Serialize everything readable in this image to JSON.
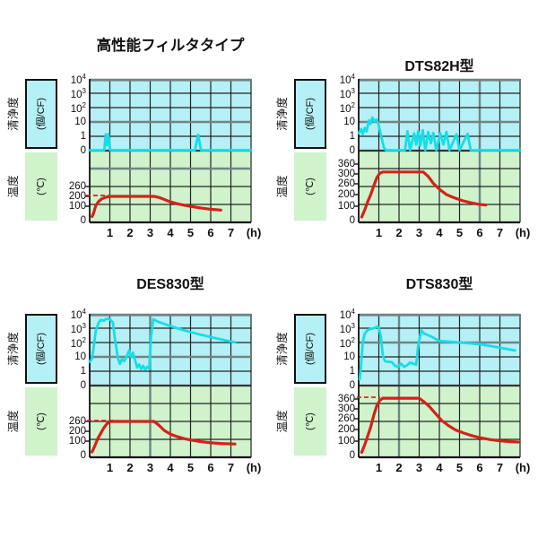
{
  "figure": {
    "background": "#ffffff"
  },
  "colors": {
    "cleanliness_bg": "#b5f0f6",
    "temperature_bg": "#d0f3cc",
    "cleanliness_line": "#17dde8",
    "temperature_line": "#d6201a",
    "grid": "#222222",
    "gray_line": "#708484",
    "axis": "#111111"
  },
  "chart_data": [
    {
      "type": "line",
      "title": "高性能フィルタタイプ",
      "x_axis": {
        "unit": "(h)",
        "ticks": [
          "1",
          "2",
          "3",
          "4",
          "5",
          "6",
          "7"
        ],
        "range_hours": [
          0,
          8
        ]
      },
      "y_axis_cleanliness": {
        "label": "清浄度",
        "unit": "(個/CF)",
        "scale": "log",
        "ticks": [
          {
            "base": "10",
            "exp": "4"
          },
          {
            "base": "10",
            "exp": "3"
          },
          {
            "base": "10",
            "exp": "2"
          },
          {
            "base": "10",
            "exp": ""
          },
          {
            "base": "1",
            "exp": ""
          },
          {
            "base": "0",
            "exp": ""
          }
        ]
      },
      "y_axis_temperature": {
        "label": "温度",
        "unit": "(℃)",
        "tick_values": [
          0,
          100,
          200,
          260
        ],
        "tick_py": [
          158,
          142,
          131,
          120
        ]
      },
      "series": [
        {
          "name": "cleanliness",
          "color": "#17dde8",
          "points": [
            [
              0,
              0
            ],
            [
              0.72,
              0
            ],
            [
              0.8,
              1.35
            ],
            [
              0.86,
              0.35
            ],
            [
              0.93,
              1.45
            ],
            [
              1.02,
              0
            ],
            [
              5.22,
              0
            ],
            [
              5.38,
              1.3
            ],
            [
              5.52,
              0
            ],
            [
              8,
              0
            ]
          ]
        },
        {
          "name": "temperature",
          "color": "#d6201a",
          "points": [
            [
              0.12,
              28
            ],
            [
              0.2,
              55
            ],
            [
              0.3,
              105
            ],
            [
              0.45,
              150
            ],
            [
              0.6,
              175
            ],
            [
              0.8,
              192
            ],
            [
              1.0,
              200
            ],
            [
              3.2,
              200
            ],
            [
              3.45,
              188
            ],
            [
              3.7,
              168
            ],
            [
              4.0,
              145
            ],
            [
              4.35,
              125
            ],
            [
              4.7,
              110
            ],
            [
              5.1,
              97
            ],
            [
              5.5,
              88
            ],
            [
              6.0,
              79
            ],
            [
              6.5,
              73
            ]
          ]
        }
      ],
      "dashed_guide": {
        "value": 200,
        "t_start": -0.18,
        "t_end": 0.93
      }
    },
    {
      "type": "line",
      "title": "DTS82H型",
      "x_axis": {
        "unit": "(h)",
        "ticks": [
          "1",
          "2",
          "3",
          "4",
          "5",
          "6",
          "7"
        ],
        "range_hours": [
          0,
          8
        ]
      },
      "y_axis_cleanliness": {
        "label": "清浄度",
        "unit": "(個/CF)",
        "scale": "log",
        "ticks": [
          {
            "base": "10",
            "exp": "4"
          },
          {
            "base": "10",
            "exp": "3"
          },
          {
            "base": "10",
            "exp": "2"
          },
          {
            "base": "10",
            "exp": ""
          },
          {
            "base": "1",
            "exp": ""
          },
          {
            "base": "0",
            "exp": ""
          }
        ]
      },
      "y_axis_temperature": {
        "label": "温度",
        "unit": "(℃)",
        "tick_values": [
          0,
          100,
          200,
          260,
          300,
          360
        ],
        "tick_py": [
          158,
          142,
          129,
          117,
          106,
          95
        ]
      },
      "series": [
        {
          "name": "cleanliness",
          "color": "#17dde8",
          "points": [
            [
              0,
              1.6
            ],
            [
              0.12,
              3.2
            ],
            [
              0.2,
              1.4
            ],
            [
              0.3,
              3.8
            ],
            [
              0.4,
              2.2
            ],
            [
              0.5,
              13
            ],
            [
              0.58,
              7
            ],
            [
              0.68,
              20
            ],
            [
              0.78,
              11
            ],
            [
              0.88,
              15
            ],
            [
              0.98,
              7
            ],
            [
              1.1,
              1.2
            ],
            [
              1.25,
              0.2
            ],
            [
              1.35,
              0
            ],
            [
              2.3,
              0
            ],
            [
              2.42,
              2.2
            ],
            [
              2.55,
              0
            ],
            [
              2.75,
              1.6
            ],
            [
              2.85,
              0.4
            ],
            [
              2.95,
              2.2
            ],
            [
              3.05,
              0.3
            ],
            [
              3.18,
              2.6
            ],
            [
              3.3,
              0
            ],
            [
              3.45,
              2
            ],
            [
              3.58,
              0.5
            ],
            [
              3.7,
              1.7
            ],
            [
              3.85,
              0
            ],
            [
              4.05,
              1.6
            ],
            [
              4.2,
              0.4
            ],
            [
              4.35,
              2
            ],
            [
              4.5,
              0
            ],
            [
              4.85,
              1.4
            ],
            [
              5.0,
              0
            ],
            [
              5.4,
              1.5
            ],
            [
              5.55,
              0
            ],
            [
              8,
              0
            ]
          ]
        },
        {
          "name": "temperature",
          "color": "#d6201a",
          "points": [
            [
              0.15,
              25
            ],
            [
              0.3,
              75
            ],
            [
              0.45,
              140
            ],
            [
              0.6,
              200
            ],
            [
              0.75,
              250
            ],
            [
              0.9,
              285
            ],
            [
              1.05,
              305
            ],
            [
              1.2,
              312
            ],
            [
              3.2,
              312
            ],
            [
              3.45,
              290
            ],
            [
              3.7,
              262
            ],
            [
              4.0,
              230
            ],
            [
              4.35,
              200
            ],
            [
              4.7,
              175
            ],
            [
              5.1,
              150
            ],
            [
              5.5,
              132
            ],
            [
              5.9,
              118
            ],
            [
              6.3,
              110
            ]
          ]
        }
      ],
      "dashed_guide": null
    },
    {
      "type": "line",
      "title": "DES830型",
      "x_axis": {
        "unit": "(h)",
        "ticks": [
          "1",
          "2",
          "3",
          "4",
          "5",
          "6",
          "7"
        ],
        "range_hours": [
          0,
          8
        ]
      },
      "y_axis_cleanliness": {
        "label": "清浄度",
        "unit": "(個/CF)",
        "scale": "log",
        "ticks": [
          {
            "base": "10",
            "exp": "4"
          },
          {
            "base": "10",
            "exp": "3"
          },
          {
            "base": "10",
            "exp": "2"
          },
          {
            "base": "10",
            "exp": ""
          },
          {
            "base": "1",
            "exp": ""
          },
          {
            "base": "0",
            "exp": ""
          }
        ]
      },
      "y_axis_temperature": {
        "label": "温度",
        "unit": "(℃)",
        "tick_values": [
          0,
          100,
          200,
          260
        ],
        "tick_py": [
          158,
          142,
          131,
          120
        ]
      },
      "series": [
        {
          "name": "cleanliness",
          "color": "#17dde8",
          "points": [
            [
              0,
              4.5
            ],
            [
              0.1,
              7
            ],
            [
              0.18,
              30
            ],
            [
              0.3,
              600
            ],
            [
              0.45,
              2500
            ],
            [
              0.55,
              3800
            ],
            [
              0.7,
              3300
            ],
            [
              0.8,
              4200
            ],
            [
              0.95,
              4600
            ],
            [
              1.05,
              3600
            ],
            [
              1.15,
              2500
            ],
            [
              1.25,
              200
            ],
            [
              1.4,
              8
            ],
            [
              1.5,
              3.2
            ],
            [
              1.6,
              7
            ],
            [
              1.72,
              5
            ],
            [
              1.85,
              12
            ],
            [
              1.95,
              28
            ],
            [
              2.05,
              10
            ],
            [
              2.15,
              20
            ],
            [
              2.25,
              6
            ],
            [
              2.35,
              1.8
            ],
            [
              2.45,
              3
            ],
            [
              2.55,
              1.4
            ],
            [
              2.65,
              2.4
            ],
            [
              2.75,
              1.3
            ],
            [
              2.85,
              2
            ],
            [
              2.95,
              1.5
            ],
            [
              3.05,
              300
            ],
            [
              3.15,
              4200
            ],
            [
              3.35,
              3000
            ],
            [
              4.0,
              1400
            ],
            [
              4.7,
              700
            ],
            [
              5.5,
              350
            ],
            [
              6.3,
              190
            ],
            [
              7.2,
              105
            ]
          ]
        },
        {
          "name": "temperature",
          "color": "#d6201a",
          "points": [
            [
              0.12,
              25
            ],
            [
              0.25,
              65
            ],
            [
              0.4,
              125
            ],
            [
              0.55,
              180
            ],
            [
              0.7,
              220
            ],
            [
              0.85,
              245
            ],
            [
              1.0,
              258
            ],
            [
              1.1,
              260
            ],
            [
              3.2,
              260
            ],
            [
              3.45,
              235
            ],
            [
              3.7,
              205
            ],
            [
              4.0,
              172
            ],
            [
              4.35,
              145
            ],
            [
              4.7,
              125
            ],
            [
              5.1,
              108
            ],
            [
              5.5,
              97
            ],
            [
              6.0,
              89
            ],
            [
              6.5,
              84
            ],
            [
              7.2,
              80
            ]
          ]
        }
      ],
      "dashed_guide": {
        "value": 260,
        "t_start": -0.13,
        "t_end": 1.3
      }
    },
    {
      "type": "line",
      "title": "DTS830型",
      "x_axis": {
        "unit": "(h)",
        "ticks": [
          "1",
          "2",
          "3",
          "4",
          "5",
          "6",
          "7"
        ],
        "range_hours": [
          0,
          8
        ]
      },
      "y_axis_cleanliness": {
        "label": "清浄度",
        "unit": "(個/CF)",
        "scale": "log",
        "ticks": [
          {
            "base": "10",
            "exp": "4"
          },
          {
            "base": "10",
            "exp": "3"
          },
          {
            "base": "10",
            "exp": "2"
          },
          {
            "base": "10",
            "exp": ""
          },
          {
            "base": "1",
            "exp": ""
          },
          {
            "base": "0",
            "exp": ""
          }
        ]
      },
      "y_axis_temperature": {
        "label": "温度",
        "unit": "(℃)",
        "tick_values": [
          0,
          100,
          200,
          260,
          300,
          360
        ],
        "tick_py": [
          158,
          142,
          129,
          117,
          106,
          95
        ]
      },
      "series": [
        {
          "name": "cleanliness",
          "color": "#17dde8",
          "points": [
            [
              0.05,
              0.4
            ],
            [
              0.12,
              3
            ],
            [
              0.2,
              100
            ],
            [
              0.3,
              420
            ],
            [
              0.45,
              750
            ],
            [
              0.6,
              900
            ],
            [
              0.75,
              1000
            ],
            [
              0.9,
              1250
            ],
            [
              1.0,
              1100
            ],
            [
              1.1,
              250
            ],
            [
              1.2,
              12
            ],
            [
              1.3,
              5
            ],
            [
              1.5,
              4.5
            ],
            [
              1.65,
              4.2
            ],
            [
              1.8,
              2.4
            ],
            [
              1.95,
              2
            ],
            [
              2.1,
              3.4
            ],
            [
              2.25,
              2
            ],
            [
              2.4,
              2.6
            ],
            [
              2.55,
              4
            ],
            [
              2.7,
              3.4
            ],
            [
              2.85,
              2.8
            ],
            [
              2.95,
              60
            ],
            [
              3.1,
              700
            ],
            [
              3.25,
              420
            ],
            [
              3.6,
              260
            ],
            [
              4.0,
              130
            ],
            [
              4.5,
              115
            ],
            [
              5.0,
              100
            ],
            [
              5.5,
              88
            ],
            [
              6.0,
              75
            ],
            [
              6.5,
              58
            ],
            [
              7.0,
              44
            ],
            [
              7.4,
              34
            ],
            [
              7.75,
              28
            ]
          ]
        },
        {
          "name": "temperature",
          "color": "#d6201a",
          "points": [
            [
              0.15,
              22
            ],
            [
              0.3,
              75
            ],
            [
              0.45,
              145
            ],
            [
              0.6,
              215
            ],
            [
              0.75,
              275
            ],
            [
              0.9,
              320
            ],
            [
              1.05,
              352
            ],
            [
              1.2,
              365
            ],
            [
              3.0,
              365
            ],
            [
              3.25,
              342
            ],
            [
              3.5,
              315
            ],
            [
              3.8,
              282
            ],
            [
              4.1,
              252
            ],
            [
              4.45,
              222
            ],
            [
              4.8,
              196
            ],
            [
              5.2,
              170
            ],
            [
              5.6,
              148
            ],
            [
              6.0,
              130
            ],
            [
              6.5,
              114
            ],
            [
              7.0,
              103
            ],
            [
              7.5,
              97
            ],
            [
              7.9,
              94
            ]
          ]
        }
      ],
      "dashed_guide": {
        "value": 365,
        "t_start": -0.09,
        "t_end": 1.07
      }
    }
  ]
}
